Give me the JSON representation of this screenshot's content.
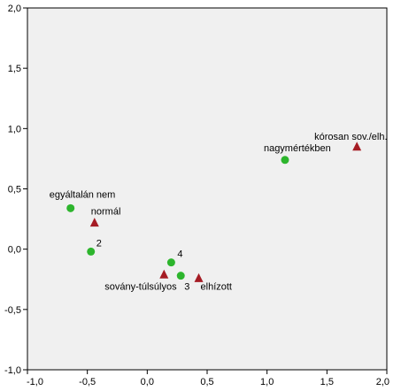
{
  "chart_data": {
    "type": "scatter",
    "title": "",
    "xlabel": "",
    "ylabel": "",
    "xlim": [
      -1.0,
      2.0
    ],
    "ylim": [
      -1.0,
      2.0
    ],
    "x_ticks": [
      -1.0,
      -0.5,
      0.0,
      0.5,
      1.0,
      1.5,
      2.0
    ],
    "y_ticks": [
      -1.0,
      -0.5,
      0.0,
      0.5,
      1.0,
      1.5,
      2.0
    ],
    "x_tick_labels": [
      "-1,0",
      "-0,5",
      "0,0",
      "0,5",
      "1,0",
      "1,5",
      "2,0"
    ],
    "y_tick_labels": [
      "-1,0",
      "-0,5",
      "0,0",
      "0,5",
      "1,0",
      "1,5",
      "2,0"
    ],
    "grid": false,
    "series": [
      {
        "marker": "circle",
        "color": "#2db52d",
        "points": [
          {
            "x": -0.64,
            "y": 0.34,
            "label": "egyáltalán nem"
          },
          {
            "x": -0.47,
            "y": -0.02,
            "label": "2"
          },
          {
            "x": 0.2,
            "y": -0.11,
            "label": "4"
          },
          {
            "x": 0.28,
            "y": -0.22,
            "label": "3"
          },
          {
            "x": 1.15,
            "y": 0.74,
            "label": "nagymértékben"
          }
        ]
      },
      {
        "marker": "triangle",
        "color": "#a51c24",
        "points": [
          {
            "x": -0.44,
            "y": 0.22,
            "label": "normál"
          },
          {
            "x": 0.14,
            "y": -0.21,
            "label": "sovány-túlsúlyos"
          },
          {
            "x": 0.43,
            "y": -0.24,
            "label": "elhízott"
          },
          {
            "x": 1.75,
            "y": 0.85,
            "label": "kórosan sov./elh."
          }
        ]
      }
    ],
    "colors": {
      "plot_background": "#f0f0f0",
      "page_background": "#ffffff",
      "axis": "#000000"
    }
  }
}
